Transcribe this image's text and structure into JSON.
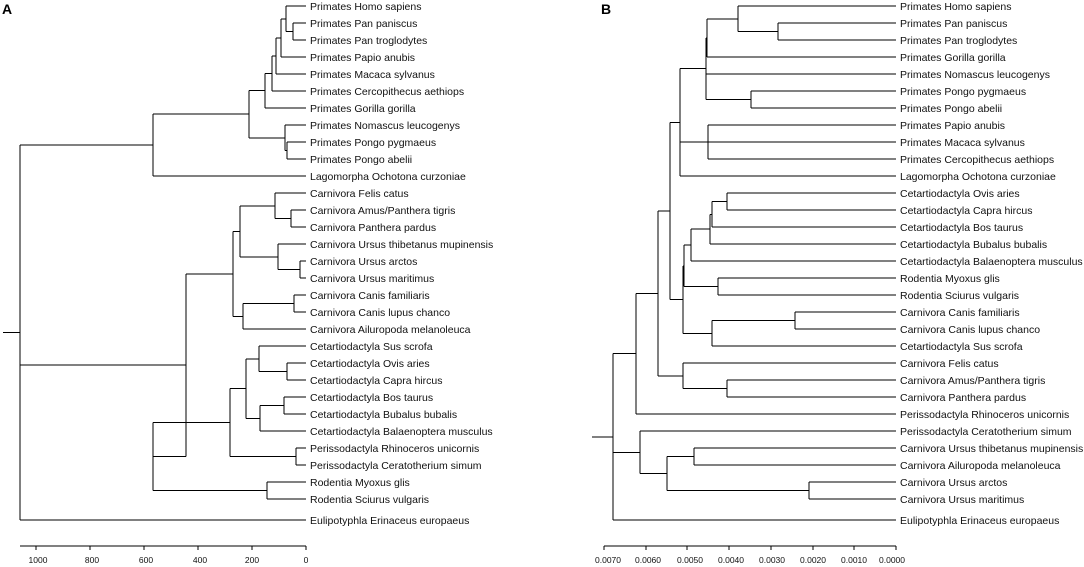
{
  "panels": [
    {
      "label": "A",
      "axis": {
        "ticks": [
          "1000",
          "800",
          "600",
          "400",
          "200",
          "0"
        ]
      },
      "taxa": [
        "Primates Homo sapiens",
        "Primates Pan paniscus",
        "Primates Pan troglodytes",
        "Primates Papio anubis",
        "Primates Macaca sylvanus",
        "Primates Cercopithecus aethiops",
        "Primates Gorilla gorilla",
        "Primates Nomascus leucogenys",
        "Primates Pongo pygmaeus",
        "Primates Pongo abelii",
        "Lagomorpha Ochotona curzoniae",
        "Carnivora Felis catus",
        "Carnivora Amus/Panthera tigris",
        "Carnivora Panthera pardus",
        "Carnivora Ursus thibetanus mupinensis",
        "Carnivora Ursus arctos",
        "Carnivora Ursus maritimus",
        "Carnivora Canis familiaris",
        "Carnivora Canis lupus chanco",
        "Carnivora Ailuropoda melanoleuca",
        "Cetartiodactyla Sus scrofa",
        "Cetartiodactyla Ovis aries",
        "Cetartiodactyla Capra hircus",
        "Cetartiodactyla Bos taurus",
        "Cetartiodactyla Bubalus bubalis",
        "Cetartiodactyla Balaenoptera musculus",
        "Perissodactyla Rhinoceros unicornis",
        "Perissodactyla Ceratotherium simum",
        "Rodentia Myoxus glis",
        "Rodentia Sciurus vulgaris",
        "Eulipotyphla Erinaceus europaeus"
      ]
    },
    {
      "label": "B",
      "axis": {
        "ticks": [
          "0.0070",
          "0.0060",
          "0.0050",
          "0.0040",
          "0.0030",
          "0.0020",
          "0.0010",
          "0.0000"
        ]
      },
      "taxa": [
        "Primates Homo sapiens",
        "Primates Pan paniscus",
        "Primates Pan troglodytes",
        "Primates Gorilla gorilla",
        "Primates Nomascus leucogenys",
        "Primates Pongo pygmaeus",
        "Primates Pongo abelii",
        "Primates Papio anubis",
        "Primates Macaca sylvanus",
        "Primates Cercopithecus aethiops",
        "Lagomorpha Ochotona curzoniae",
        "Cetartiodactyla Ovis aries",
        "Cetartiodactyla Capra hircus",
        "Cetartiodactyla Bos taurus",
        "Cetartiodactyla Bubalus bubalis",
        "Cetartiodactyla Balaenoptera musculus",
        "Rodentia Myoxus glis",
        "Rodentia Sciurus vulgaris",
        "Carnivora Canis familiaris",
        "Carnivora Canis lupus chanco",
        "Cetartiodactyla Sus scrofa",
        "Carnivora Felis catus",
        "Carnivora Amus/Panthera tigris",
        "Carnivora Panthera pardus",
        "Perissodactyla Rhinoceros unicornis",
        "Perissodactyla Ceratotherium simum",
        "Carnivora Ursus thibetanus mupinensis",
        "Carnivora Ailuropoda melanoleuca",
        "Carnivora Ursus arctos",
        "Carnivora Ursus maritimus",
        "Eulipotyphla Erinaceus europaeus"
      ]
    }
  ]
}
